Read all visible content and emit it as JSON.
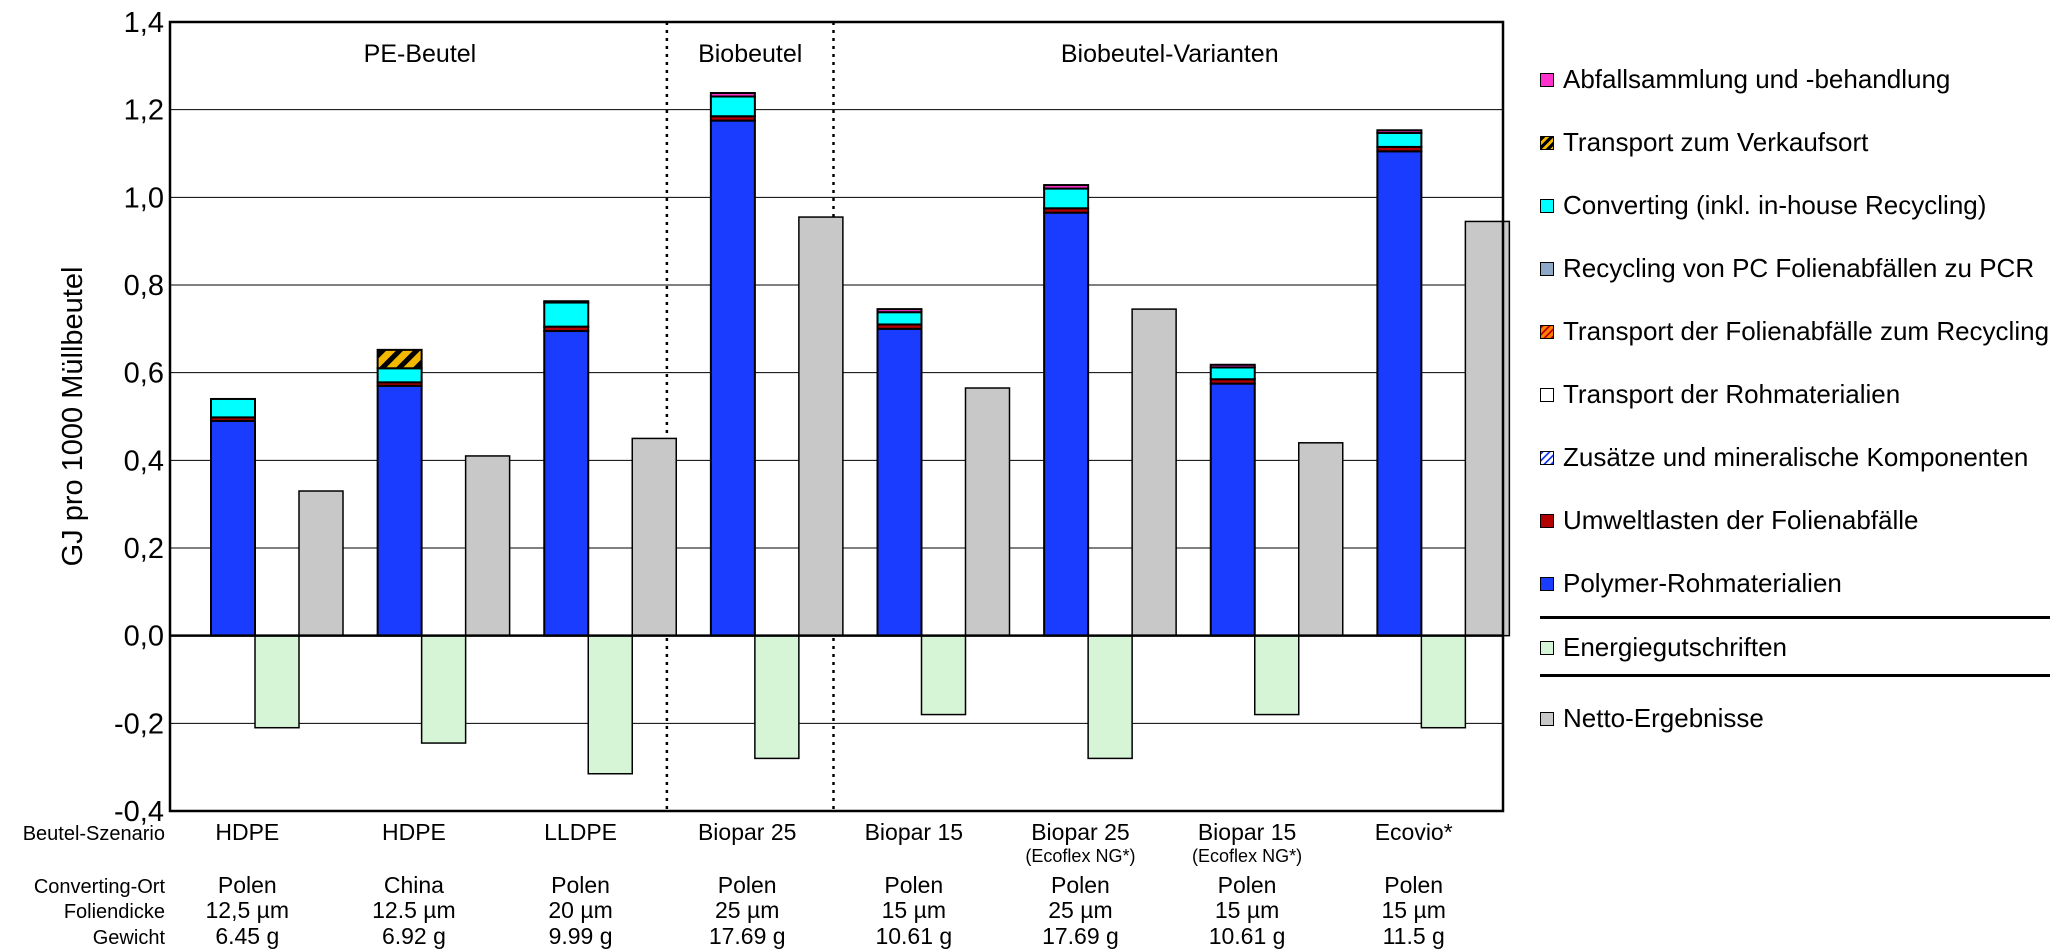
{
  "chart_data": {
    "type": "bar",
    "stacked": true,
    "ylabel": "GJ pro 1000 Müllbeutel",
    "ylim": [
      -0.4,
      1.4
    ],
    "yticks": [
      "-0,4",
      "-0,2",
      "0,0",
      "0,2",
      "0,4",
      "0,6",
      "0,8",
      "1,0",
      "1,2",
      "1,4"
    ],
    "grid": true,
    "groups": [
      "PE-Beutel",
      "Biobeutel",
      "Biobeutel-Varianten"
    ],
    "row_labels": [
      "Beutel-Szenario",
      "Converting-Ort",
      "Foliendicke",
      "Gewicht"
    ],
    "scenarios": [
      {
        "name": "HDPE",
        "sub": "",
        "ort": "Polen",
        "dicke": "12,5 µm",
        "gewicht": "6.45 g",
        "polymer": 0.49,
        "umwelt": 0.008,
        "converting": 0.042,
        "transport_verkauf": 0.0,
        "abfall": 0.0,
        "energie": -0.21,
        "netto": 0.33
      },
      {
        "name": "HDPE",
        "sub": "",
        "ort": "China",
        "dicke": "12.5 µm",
        "gewicht": "6.92 g",
        "polymer": 0.57,
        "umwelt": 0.008,
        "converting": 0.032,
        "transport_verkauf": 0.042,
        "abfall": 0.0,
        "energie": -0.245,
        "netto": 0.41
      },
      {
        "name": "LLDPE",
        "sub": "",
        "ort": "Polen",
        "dicke": "20 µm",
        "gewicht": "9.99 g",
        "polymer": 0.695,
        "umwelt": 0.01,
        "converting": 0.055,
        "transport_verkauf": 0.0,
        "abfall": 0.003,
        "energie": -0.315,
        "netto": 0.45
      },
      {
        "name": "Biopar 25",
        "sub": "",
        "ort": "Polen",
        "dicke": "25 µm",
        "gewicht": "17.69 g",
        "polymer": 1.175,
        "umwelt": 0.01,
        "converting": 0.045,
        "transport_verkauf": 0.0,
        "abfall": 0.008,
        "energie": -0.28,
        "netto": 0.955
      },
      {
        "name": "Biopar 15",
        "sub": "",
        "ort": "Polen",
        "dicke": "15 µm",
        "gewicht": "10.61 g",
        "polymer": 0.7,
        "umwelt": 0.01,
        "converting": 0.028,
        "transport_verkauf": 0.0,
        "abfall": 0.007,
        "energie": -0.18,
        "netto": 0.565
      },
      {
        "name": "Biopar 25",
        "sub": "(Ecoflex NG*)",
        "ort": "Polen",
        "dicke": "25 µm",
        "gewicht": "17.69 g",
        "polymer": 0.965,
        "umwelt": 0.01,
        "converting": 0.045,
        "transport_verkauf": 0.0,
        "abfall": 0.008,
        "energie": -0.28,
        "netto": 0.745
      },
      {
        "name": "Biopar 15",
        "sub": "(Ecoflex NG*)",
        "ort": "Polen",
        "dicke": "15 µm",
        "gewicht": "10.61 g",
        "polymer": 0.575,
        "umwelt": 0.01,
        "converting": 0.027,
        "transport_verkauf": 0.0,
        "abfall": 0.006,
        "energie": -0.18,
        "netto": 0.44
      },
      {
        "name": "Ecovio*",
        "sub": "",
        "ort": "Polen",
        "dicke": "15 µm",
        "gewicht": "11.5 g",
        "polymer": 1.105,
        "umwelt": 0.01,
        "converting": 0.032,
        "transport_verkauf": 0.0,
        "abfall": 0.006,
        "energie": -0.21,
        "netto": 0.945
      }
    ],
    "legend": [
      {
        "key": "abfall",
        "label": "Abfallsammlung und -behandlung",
        "color": "#ff33cc"
      },
      {
        "key": "transport_verkauf",
        "label": "Transport zum Verkaufsort",
        "color": "#f5b800",
        "pattern": "hatch-black"
      },
      {
        "key": "converting",
        "label": "Converting (inkl. in-house Recycling)",
        "color": "#00ffff"
      },
      {
        "key": "recycling_pc",
        "label": "Recycling von PC Folienabfällen zu PCR",
        "color": "#8ea9c8"
      },
      {
        "key": "transport_recycling",
        "label": "Transport der Folienabfälle zum Recycling",
        "color": "#ff7f00",
        "pattern": "hatch-red"
      },
      {
        "key": "transport_roh",
        "label": "Transport der Rohmaterialien",
        "color": "#ffffff"
      },
      {
        "key": "zusaetze",
        "label": "Zusätze und mineralische Komponenten",
        "color": "#ffffff",
        "pattern": "hatch-blue"
      },
      {
        "key": "umwelt",
        "label": "Umweltlasten der Folienabfälle",
        "color": "#b30000"
      },
      {
        "key": "polymer",
        "label": "Polymer-Rohmaterialien",
        "color": "#1a3cff"
      },
      {
        "key": "energie",
        "label": "Energiegutschriften",
        "color": "#d6f5d6"
      },
      {
        "key": "netto",
        "label": "Netto-Ergebnisse",
        "color": "#c8c8c8"
      }
    ]
  }
}
